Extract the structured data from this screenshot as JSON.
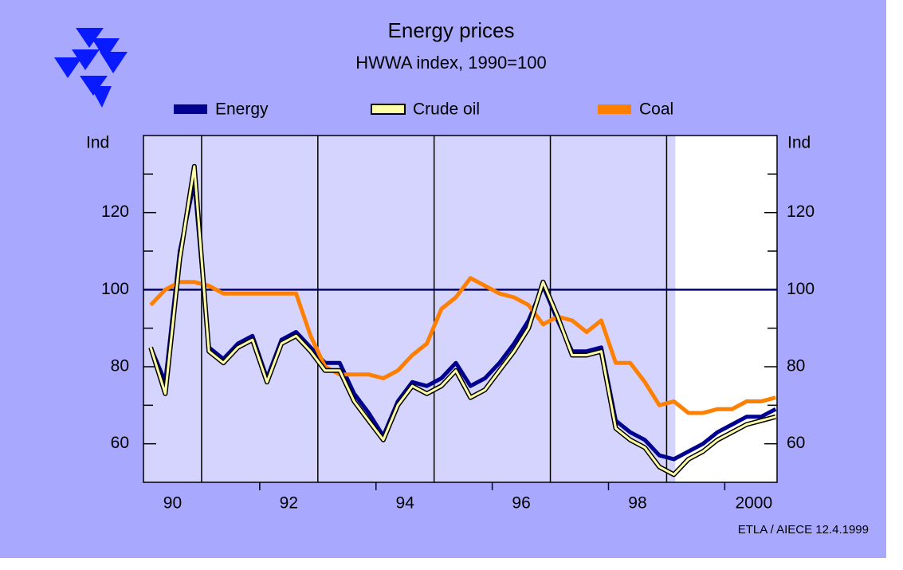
{
  "chart_data": {
    "type": "line",
    "title": "Energy prices",
    "subtitle": "HWWA index, 1990=100",
    "y_label_left": "Ind",
    "y_label_right": "Ind",
    "source": "ETLA / AIECE 12.4.1999",
    "x": [
      1990.125,
      1990.375,
      1990.625,
      1990.875,
      1991.125,
      1991.375,
      1991.625,
      1991.875,
      1992.125,
      1992.375,
      1992.625,
      1992.875,
      1993.125,
      1993.375,
      1993.625,
      1993.875,
      1994.125,
      1994.375,
      1994.625,
      1994.875,
      1995.125,
      1995.375,
      1995.625,
      1995.875,
      1996.125,
      1996.375,
      1996.625,
      1996.875,
      1997.125,
      1997.375,
      1997.625,
      1997.875,
      1998.125,
      1998.375,
      1998.625,
      1998.875,
      1999.125,
      1999.375,
      1999.625,
      1999.875,
      2000.125,
      2000.375,
      2000.625,
      2000.875
    ],
    "series": [
      {
        "name": "Energy",
        "color": "#000090",
        "values": [
          85,
          76,
          110,
          128,
          85,
          82,
          86,
          88,
          77,
          87,
          89,
          85,
          81,
          81,
          73,
          68,
          62,
          71,
          76,
          75,
          77,
          81,
          75,
          77,
          81,
          86,
          92,
          101,
          92,
          84,
          84,
          85,
          66,
          63,
          61,
          57,
          56,
          58,
          60,
          63,
          65,
          67,
          67,
          69
        ]
      },
      {
        "name": "Crude oil",
        "color": "#ffffa8",
        "values": [
          85,
          73,
          108,
          132,
          84,
          81,
          85,
          87,
          76,
          86,
          88,
          84,
          79,
          79,
          71,
          66,
          61,
          70,
          75,
          73,
          75,
          79,
          72,
          74,
          79,
          84,
          90,
          102,
          93,
          83,
          83,
          84,
          64,
          61,
          59,
          54,
          52,
          56,
          58,
          61,
          63,
          65,
          66,
          67
        ]
      },
      {
        "name": "Coal",
        "color": "#ff8000",
        "values": [
          96,
          100,
          102,
          102,
          101,
          99,
          99,
          99,
          99,
          99,
          99,
          88,
          80,
          78,
          78,
          78,
          77,
          79,
          83,
          86,
          95,
          98,
          103,
          101,
          99,
          98,
          96,
          91,
          93,
          92,
          89,
          92,
          81,
          81,
          76,
          70,
          71,
          68,
          68,
          69,
          69,
          71,
          71,
          72
        ]
      }
    ],
    "xlim": [
      1990,
      2000.9
    ],
    "xticks": [
      {
        "value": 1990.5,
        "label": "90"
      },
      {
        "value": 1992.5,
        "label": "92"
      },
      {
        "value": 1994.5,
        "label": "94"
      },
      {
        "value": 1996.5,
        "label": "96"
      },
      {
        "value": 1998.5,
        "label": "98"
      },
      {
        "value": 2000.5,
        "label": "2000"
      }
    ],
    "xgrid": [
      1991,
      1993,
      1995,
      1997,
      1999
    ],
    "xminor": [
      1992,
      1994,
      1996,
      1998,
      2000
    ],
    "forecast_from": 1999.15,
    "ylim": [
      50,
      140
    ],
    "yticks": [
      60,
      80,
      100,
      120
    ],
    "yminor": [
      70,
      90,
      110,
      130
    ],
    "reference_line": 100
  }
}
